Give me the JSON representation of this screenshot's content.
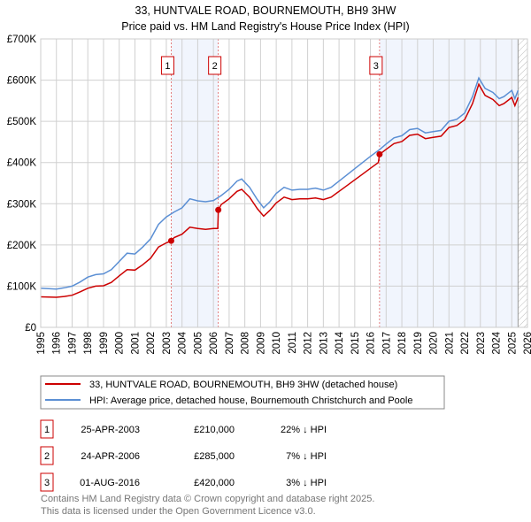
{
  "chart_data": {
    "type": "line",
    "title": "33, HUNTVALE ROAD, BOURNEMOUTH, BH9 3HW",
    "subtitle": "Price paid vs. HM Land Registry's House Price Index (HPI)",
    "xlim": [
      1995,
      2026
    ],
    "ylim": [
      0,
      700000
    ],
    "grid": true,
    "x_ticks": [
      "1995",
      "1996",
      "1997",
      "1998",
      "1999",
      "2000",
      "2001",
      "2002",
      "2003",
      "2004",
      "2005",
      "2006",
      "2007",
      "2008",
      "2009",
      "2010",
      "2011",
      "2012",
      "2013",
      "2014",
      "2015",
      "2016",
      "2017",
      "2018",
      "2019",
      "2020",
      "2021",
      "2022",
      "2023",
      "2024",
      "2025",
      "2026"
    ],
    "y_ticks": [
      {
        "v": 0,
        "label": "£0"
      },
      {
        "v": 100000,
        "label": "£100K"
      },
      {
        "v": 200000,
        "label": "£200K"
      },
      {
        "v": 300000,
        "label": "£300K"
      },
      {
        "v": 400000,
        "label": "£400K"
      },
      {
        "v": 500000,
        "label": "£500K"
      },
      {
        "v": 600000,
        "label": "£600K"
      },
      {
        "v": 700000,
        "label": "£700K"
      }
    ],
    "shaded_ranges": [
      [
        2003.31,
        2006.31
      ],
      [
        2016.58,
        2025.4
      ]
    ],
    "hatched_from": 2025.4,
    "series": [
      {
        "name": "33, HUNTVALE ROAD, BOURNEMOUTH, BH9 3HW (detached house)",
        "color": "#cc0000",
        "x": [
          1995,
          1996,
          1996.5,
          1997,
          1997.5,
          1998,
          1998.5,
          1999,
          1999.5,
          2000,
          2000.5,
          2001,
          2001.5,
          2002,
          2002.5,
          2003,
          2003.31,
          2003.5,
          2004,
          2004.5,
          2005,
          2005.5,
          2006,
          2006.28,
          2006.31,
          2006.5,
          2007,
          2007.5,
          2007.8,
          2008.3,
          2008.8,
          2009.2,
          2009.6,
          2010,
          2010.5,
          2011,
          2011.5,
          2012,
          2012.5,
          2013,
          2013.5,
          2014,
          2014.5,
          2015,
          2015.5,
          2016,
          2016.5,
          2016.58,
          2017,
          2017.5,
          2018,
          2018.5,
          2019,
          2019.5,
          2020,
          2020.5,
          2021,
          2021.5,
          2022,
          2022.5,
          2022.9,
          2023.3,
          2023.8,
          2024.2,
          2024.5,
          2025,
          2025.2,
          2025.4
        ],
        "y": [
          74000,
          73000,
          75000,
          78000,
          86000,
          95000,
          100000,
          101000,
          109000,
          125000,
          140000,
          139000,
          152000,
          168000,
          195000,
          205000,
          210000,
          218000,
          226000,
          243000,
          240000,
          238000,
          240000,
          240000,
          285000,
          298000,
          312000,
          330000,
          335000,
          316000,
          288000,
          270000,
          284000,
          302000,
          316000,
          310000,
          312000,
          312000,
          314000,
          310000,
          316000,
          330000,
          344000,
          358000,
          372000,
          386000,
          400000,
          420000,
          432000,
          446000,
          451000,
          466000,
          469000,
          458000,
          461000,
          464000,
          485000,
          490000,
          504000,
          543000,
          590000,
          563000,
          553000,
          538000,
          543000,
          558000,
          538000,
          558000
        ]
      },
      {
        "name": "HPI: Average price, detached house, Bournemouth Christchurch and Poole",
        "color": "#5b8fd4",
        "x": [
          1995,
          1996,
          1996.5,
          1997,
          1997.5,
          1998,
          1998.5,
          1999,
          1999.5,
          2000,
          2000.5,
          2001,
          2001.5,
          2002,
          2002.5,
          2003,
          2003.5,
          2004,
          2004.5,
          2005,
          2005.5,
          2006,
          2006.5,
          2007,
          2007.5,
          2007.8,
          2008.3,
          2008.8,
          2009.2,
          2009.6,
          2010,
          2010.5,
          2011,
          2011.5,
          2012,
          2012.5,
          2013,
          2013.5,
          2014,
          2014.5,
          2015,
          2015.5,
          2016,
          2016.6,
          2017,
          2017.5,
          2018,
          2018.5,
          2019,
          2019.5,
          2020,
          2020.5,
          2021,
          2021.5,
          2022,
          2022.5,
          2022.9,
          2023.3,
          2023.8,
          2024.2,
          2024.5,
          2025,
          2025.2,
          2025.4
        ],
        "y": [
          95000,
          93000,
          96000,
          100000,
          110000,
          122000,
          128000,
          130000,
          140000,
          160000,
          180000,
          178000,
          195000,
          215000,
          250000,
          268000,
          280000,
          290000,
          312000,
          307000,
          305000,
          308000,
          320000,
          335000,
          355000,
          360000,
          340000,
          310000,
          290000,
          305000,
          325000,
          340000,
          333000,
          335000,
          335000,
          338000,
          333000,
          340000,
          355000,
          370000,
          385000,
          400000,
          415000,
          432000,
          445000,
          460000,
          465000,
          480000,
          483000,
          472000,
          475000,
          478000,
          500000,
          505000,
          520000,
          560000,
          605000,
          580000,
          570000,
          555000,
          560000,
          575000,
          555000,
          575000
        ]
      }
    ],
    "sales": [
      {
        "n": "1",
        "x": 2003.31,
        "price": 210000,
        "date": "25-APR-2003",
        "price_label": "£210,000",
        "hpi_diff": "22% ↓ HPI"
      },
      {
        "n": "2",
        "x": 2006.31,
        "price": 285000,
        "date": "24-APR-2006",
        "price_label": "£285,000",
        "hpi_diff": "7% ↓ HPI"
      },
      {
        "n": "3",
        "x": 2016.58,
        "price": 420000,
        "date": "01-AUG-2016",
        "price_label": "£420,000",
        "hpi_diff": "3% ↓ HPI"
      }
    ]
  },
  "footer": {
    "line1": "Contains HM Land Registry data © Crown copyright and database right 2025.",
    "line2": "This data is licensed under the Open Government Licence v3.0."
  }
}
